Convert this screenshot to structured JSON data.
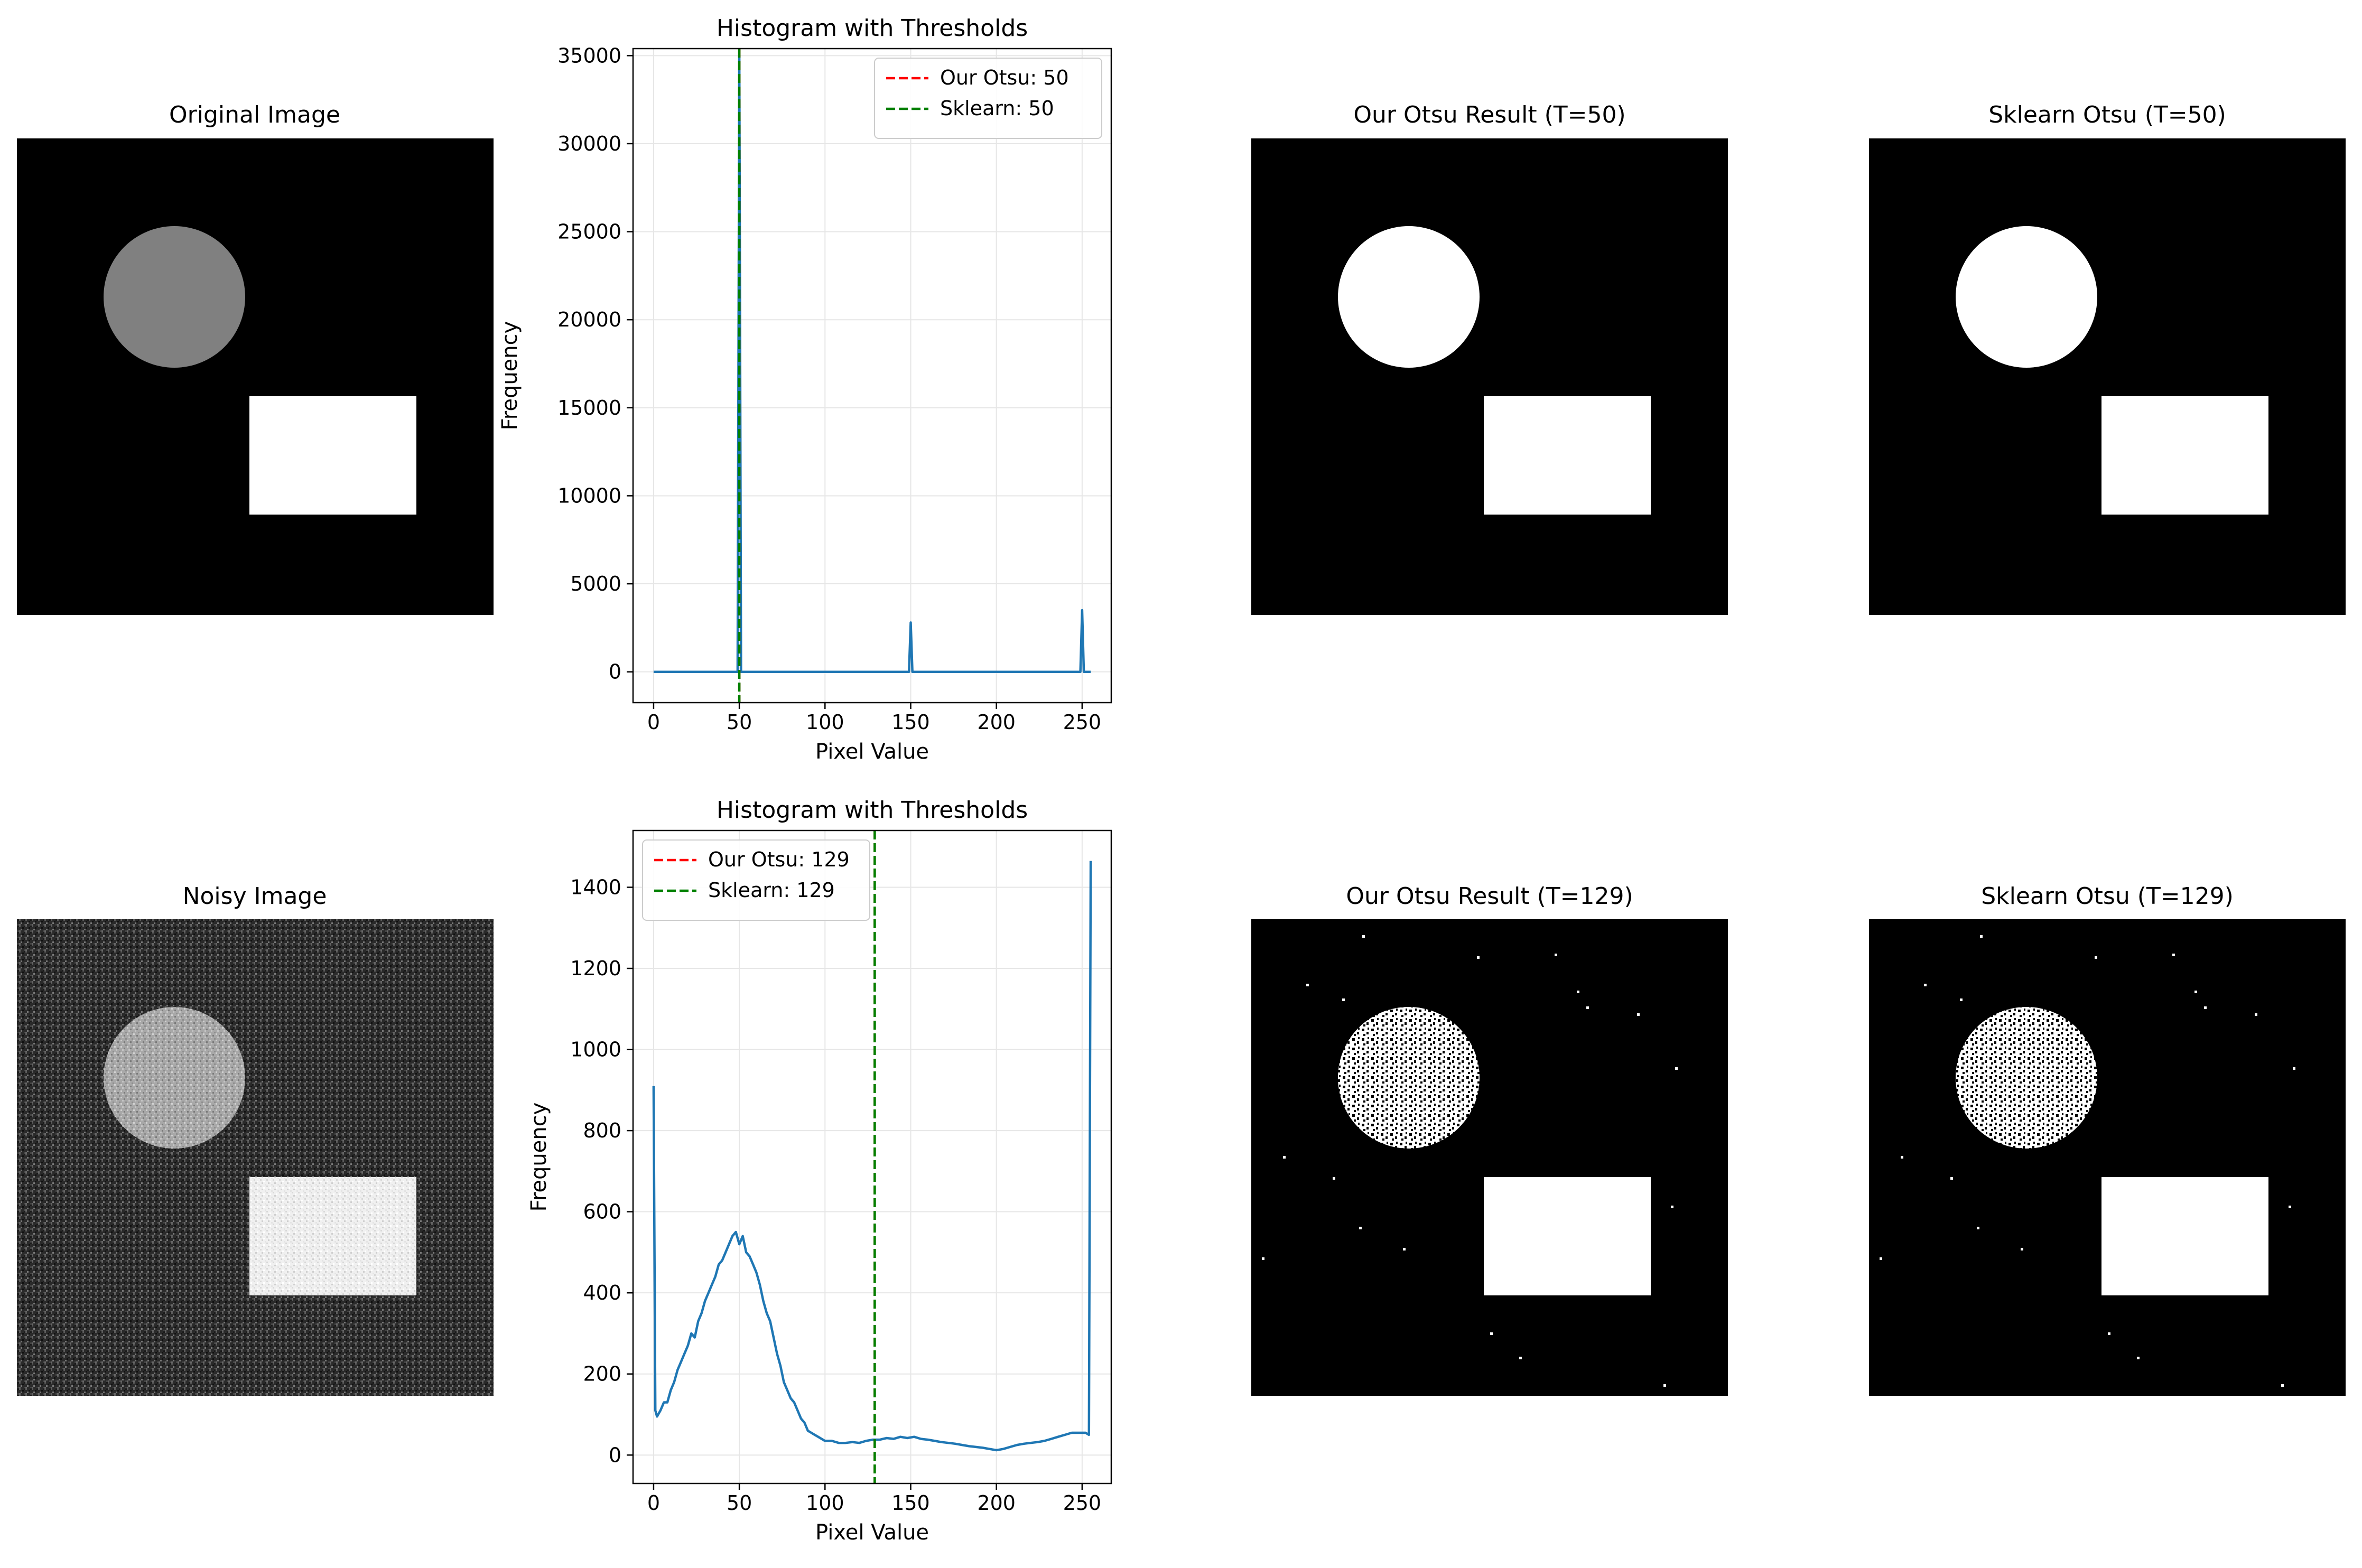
{
  "figure": {
    "row1": {
      "original_title": "Original Image",
      "ours_title": "Our Otsu Result (T=50)",
      "sklearn_title": "Sklearn Otsu (T=50)"
    },
    "row2": {
      "original_title": "Noisy Image",
      "ours_title": "Our Otsu Result (T=129)",
      "sklearn_title": "Sklearn Otsu (T=129)"
    }
  },
  "chart_data": [
    {
      "type": "line",
      "title": "Histogram with Thresholds",
      "xlabel": "Pixel Value",
      "ylabel": "Frequency",
      "xlim": [
        -12,
        267
      ],
      "ylim": [
        -1750,
        35400
      ],
      "xticks": [
        0,
        50,
        100,
        150,
        200,
        250
      ],
      "yticks": [
        0,
        5000,
        10000,
        15000,
        20000,
        25000,
        30000,
        35000
      ],
      "grid": true,
      "legend_position": "upper right",
      "series": [
        {
          "kind": "histogram",
          "color": "#1f77b4",
          "points": [
            [
              0,
              0
            ],
            [
              49,
              0
            ],
            [
              50,
              35000
            ],
            [
              51,
              0
            ],
            [
              149,
              0
            ],
            [
              150,
              2800
            ],
            [
              151,
              0
            ],
            [
              249,
              0
            ],
            [
              250,
              3500
            ],
            [
              251,
              0
            ],
            [
              255,
              0
            ]
          ]
        }
      ],
      "thresholds": [
        {
          "label": "Our Otsu: 50",
          "value": 50,
          "color": "#ff0000"
        },
        {
          "label": "Sklearn: 50",
          "value": 50,
          "color": "#008000"
        }
      ]
    },
    {
      "type": "line",
      "title": "Histogram with Thresholds",
      "xlabel": "Pixel Value",
      "ylabel": "Frequency",
      "xlim": [
        -12,
        267
      ],
      "ylim": [
        -70,
        1540
      ],
      "xticks": [
        0,
        50,
        100,
        150,
        200,
        250
      ],
      "yticks": [
        0,
        200,
        400,
        600,
        800,
        1000,
        1200,
        1400
      ],
      "grid": true,
      "legend_position": "upper left",
      "series": [
        {
          "kind": "histogram",
          "color": "#1f77b4",
          "points": [
            [
              0,
              910
            ],
            [
              1,
              110
            ],
            [
              2,
              95
            ],
            [
              4,
              110
            ],
            [
              6,
              130
            ],
            [
              8,
              130
            ],
            [
              10,
              160
            ],
            [
              12,
              180
            ],
            [
              14,
              210
            ],
            [
              16,
              230
            ],
            [
              18,
              250
            ],
            [
              20,
              270
            ],
            [
              22,
              300
            ],
            [
              24,
              290
            ],
            [
              26,
              330
            ],
            [
              28,
              350
            ],
            [
              30,
              380
            ],
            [
              32,
              400
            ],
            [
              34,
              420
            ],
            [
              36,
              440
            ],
            [
              38,
              470
            ],
            [
              40,
              480
            ],
            [
              42,
              500
            ],
            [
              44,
              520
            ],
            [
              46,
              540
            ],
            [
              48,
              550
            ],
            [
              50,
              520
            ],
            [
              52,
              540
            ],
            [
              54,
              500
            ],
            [
              56,
              490
            ],
            [
              58,
              470
            ],
            [
              60,
              450
            ],
            [
              62,
              420
            ],
            [
              64,
              380
            ],
            [
              66,
              350
            ],
            [
              68,
              330
            ],
            [
              70,
              290
            ],
            [
              72,
              250
            ],
            [
              74,
              220
            ],
            [
              76,
              180
            ],
            [
              78,
              160
            ],
            [
              80,
              140
            ],
            [
              82,
              130
            ],
            [
              84,
              110
            ],
            [
              86,
              90
            ],
            [
              88,
              80
            ],
            [
              90,
              60
            ],
            [
              92,
              55
            ],
            [
              94,
              50
            ],
            [
              96,
              45
            ],
            [
              98,
              40
            ],
            [
              100,
              35
            ],
            [
              104,
              35
            ],
            [
              108,
              30
            ],
            [
              112,
              30
            ],
            [
              116,
              32
            ],
            [
              120,
              30
            ],
            [
              124,
              35
            ],
            [
              128,
              38
            ],
            [
              132,
              38
            ],
            [
              136,
              42
            ],
            [
              140,
              40
            ],
            [
              144,
              45
            ],
            [
              148,
              42
            ],
            [
              152,
              45
            ],
            [
              156,
              40
            ],
            [
              160,
              38
            ],
            [
              164,
              35
            ],
            [
              168,
              32
            ],
            [
              172,
              30
            ],
            [
              176,
              28
            ],
            [
              180,
              25
            ],
            [
              184,
              22
            ],
            [
              188,
              20
            ],
            [
              192,
              18
            ],
            [
              196,
              15
            ],
            [
              200,
              12
            ],
            [
              204,
              15
            ],
            [
              208,
              20
            ],
            [
              212,
              25
            ],
            [
              216,
              28
            ],
            [
              220,
              30
            ],
            [
              224,
              32
            ],
            [
              228,
              35
            ],
            [
              232,
              40
            ],
            [
              236,
              45
            ],
            [
              240,
              50
            ],
            [
              244,
              55
            ],
            [
              248,
              55
            ],
            [
              252,
              55
            ],
            [
              254,
              50
            ],
            [
              255,
              1465
            ]
          ]
        }
      ],
      "thresholds": [
        {
          "label": "Our Otsu: 129",
          "value": 129,
          "color": "#ff0000"
        },
        {
          "label": "Sklearn: 129",
          "value": 129,
          "color": "#008000"
        }
      ]
    }
  ]
}
